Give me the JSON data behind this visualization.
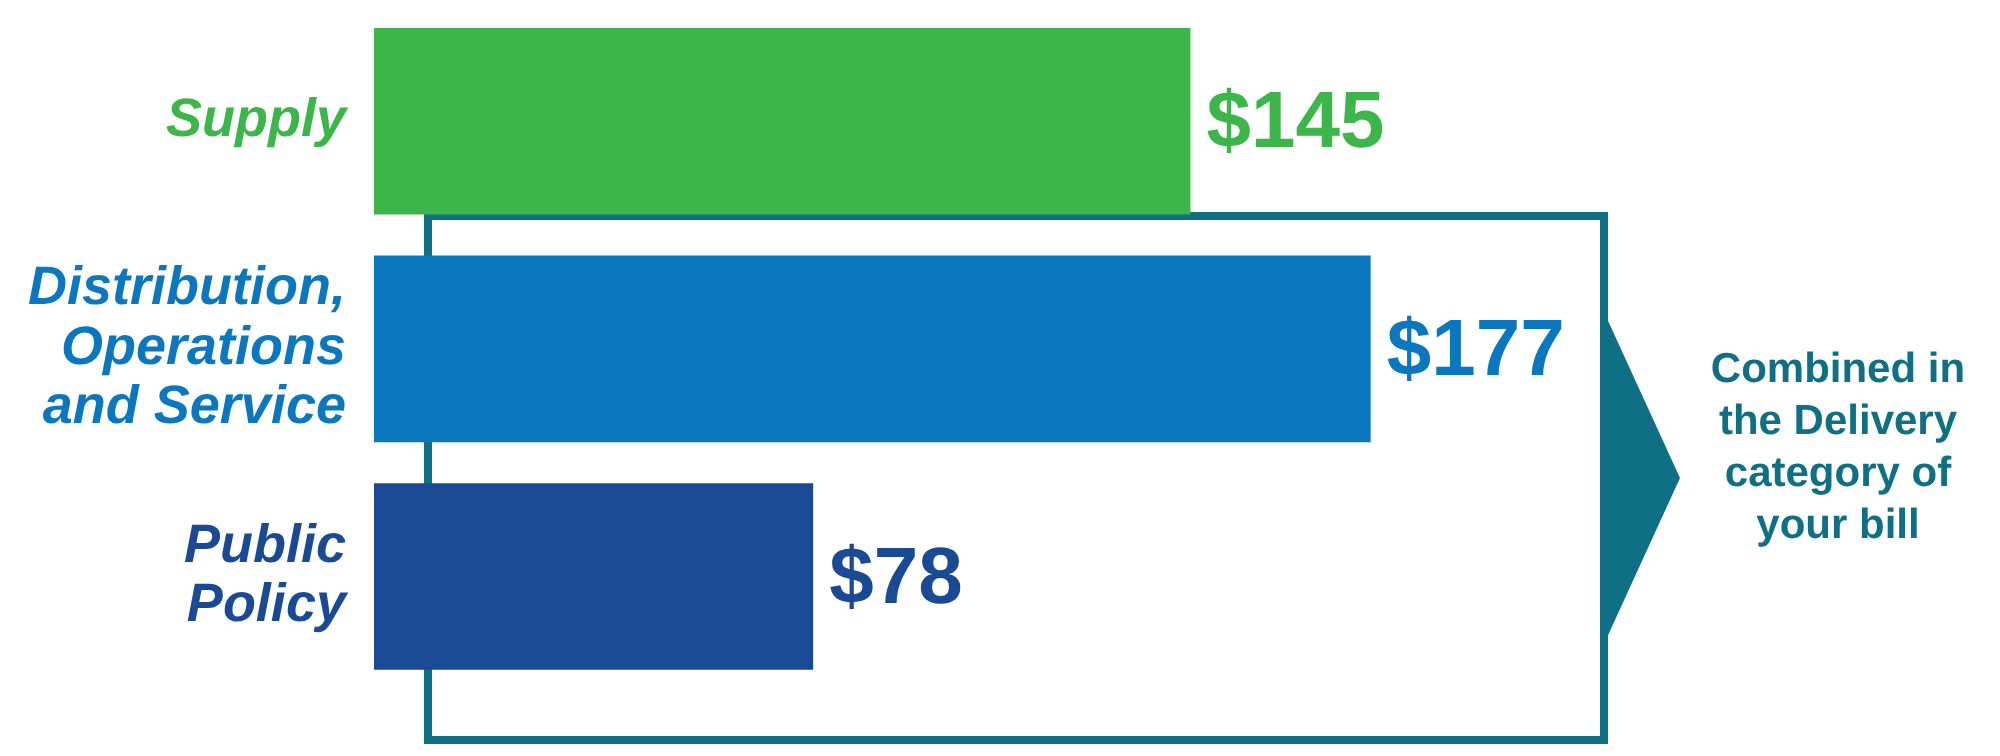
{
  "chart_data": {
    "type": "bar",
    "orientation": "horizontal",
    "categories": [
      "Supply",
      "Distribution, Operations and Service",
      "Public Policy"
    ],
    "values": [
      145,
      177,
      78
    ],
    "colors": [
      "#3cb54a",
      "#0a77be",
      "#1b4a94"
    ],
    "value_labels": [
      "$145",
      "$177",
      "$78"
    ],
    "annotations": [
      "Combined in the Delivery category of your bill"
    ],
    "grid": false
  }
}
